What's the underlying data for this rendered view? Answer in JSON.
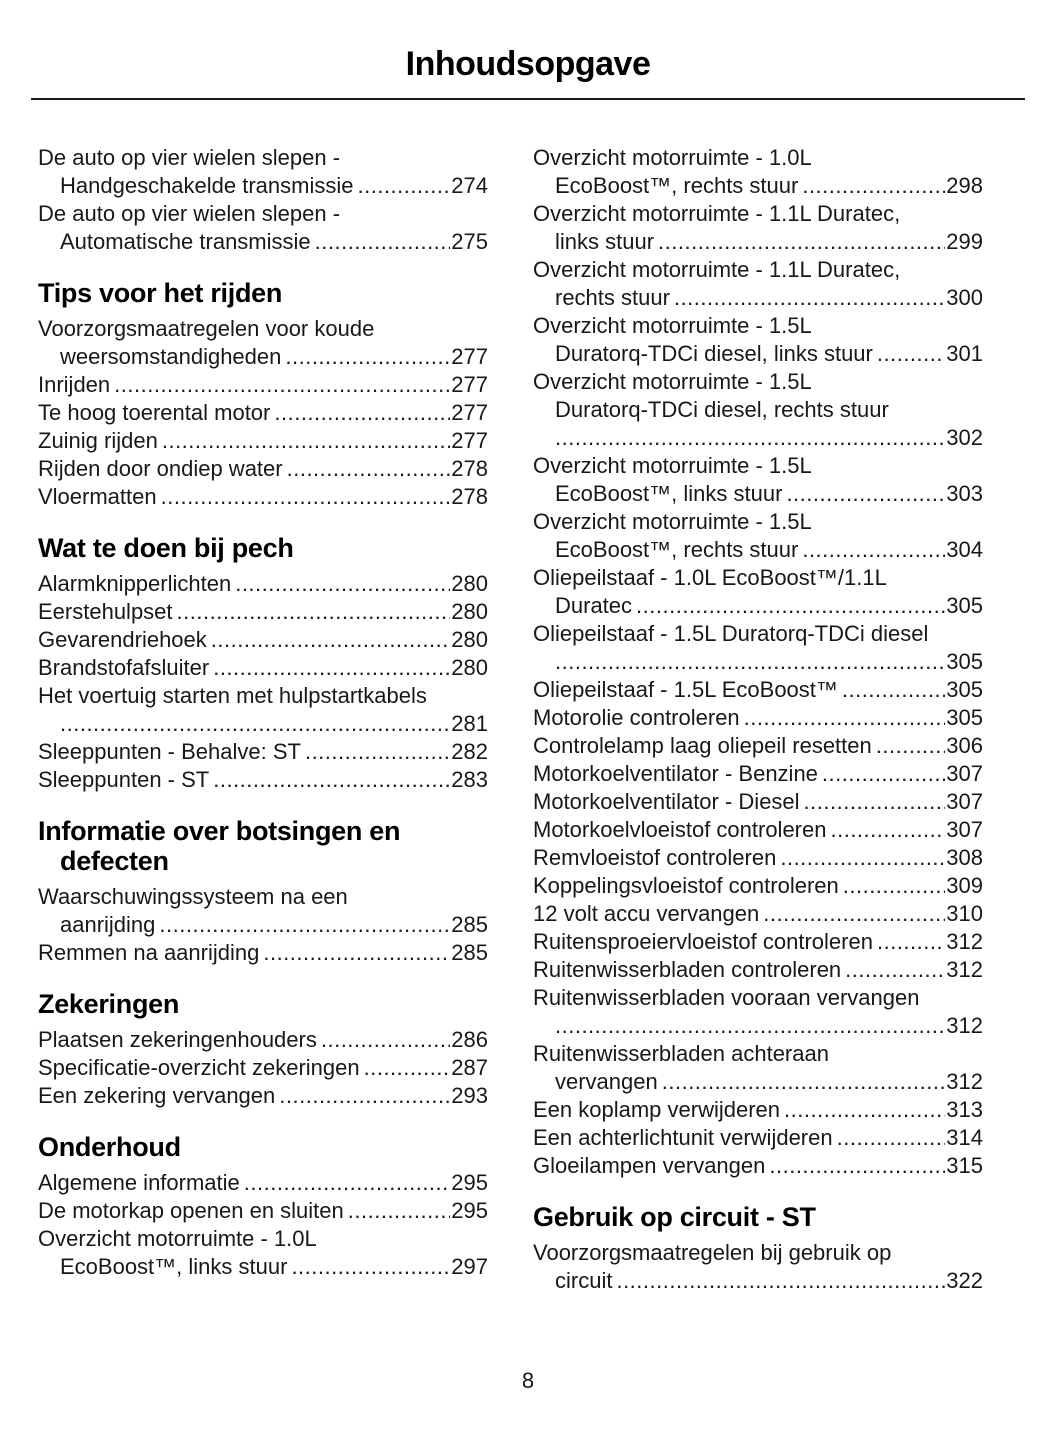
{
  "title": "Inhoudsopgave",
  "footer": {
    "page_number": "8"
  },
  "columns": {
    "left": [
      {
        "type": "entry",
        "pre": [
          "De auto op vier wielen slepen -"
        ],
        "last": "Handgeschakelde transmissie",
        "page": "274"
      },
      {
        "type": "entry",
        "pre": [
          "De auto op vier wielen slepen -"
        ],
        "last": "Automatische transmissie",
        "page": "275"
      },
      {
        "type": "heading",
        "lines": [
          "Tips voor het rijden"
        ]
      },
      {
        "type": "entry",
        "pre": [
          "Voorzorgsmaatregelen voor koude"
        ],
        "last": "weersomstandigheden",
        "page": "277"
      },
      {
        "type": "entry",
        "pre": [],
        "last": "Inrijden",
        "page": "277"
      },
      {
        "type": "entry",
        "pre": [],
        "last": "Te hoog toerental motor",
        "page": "277"
      },
      {
        "type": "entry",
        "pre": [],
        "last": "Zuinig rijden",
        "page": "277"
      },
      {
        "type": "entry",
        "pre": [],
        "last": "Rijden door ondiep water",
        "page": "278"
      },
      {
        "type": "entry",
        "pre": [],
        "last": "Vloermatten",
        "page": "278"
      },
      {
        "type": "heading",
        "lines": [
          "Wat te doen bij pech"
        ]
      },
      {
        "type": "entry",
        "pre": [],
        "last": "Alarmknipperlichten",
        "page": "280"
      },
      {
        "type": "entry",
        "pre": [],
        "last": "Eerstehulpset",
        "page": "280"
      },
      {
        "type": "entry",
        "pre": [],
        "last": "Gevarendriehoek",
        "page": "280"
      },
      {
        "type": "entry",
        "pre": [],
        "last": "Brandstofafsluiter",
        "page": "280"
      },
      {
        "type": "entry",
        "pre": [
          "Het voertuig starten met hulpstartkabels"
        ],
        "last": "",
        "page": "281"
      },
      {
        "type": "entry",
        "pre": [],
        "last": "Sleeppunten - Behalve: ST",
        "page": "282"
      },
      {
        "type": "entry",
        "pre": [],
        "last": "Sleeppunten - ST",
        "page": "283"
      },
      {
        "type": "heading",
        "lines": [
          "Informatie over botsingen en",
          "defecten"
        ]
      },
      {
        "type": "entry",
        "pre": [
          "Waarschuwingssysteem na een"
        ],
        "last": "aanrijding",
        "page": "285"
      },
      {
        "type": "entry",
        "pre": [],
        "last": "Remmen na aanrijding",
        "page": "285"
      },
      {
        "type": "heading",
        "lines": [
          "Zekeringen"
        ]
      },
      {
        "type": "entry",
        "pre": [],
        "last": "Plaatsen zekeringenhouders",
        "page": "286"
      },
      {
        "type": "entry",
        "pre": [],
        "last": "Specificatie-overzicht zekeringen",
        "page": "287"
      },
      {
        "type": "entry",
        "pre": [],
        "last": "Een zekering vervangen",
        "page": "293"
      },
      {
        "type": "heading",
        "lines": [
          "Onderhoud"
        ]
      },
      {
        "type": "entry",
        "pre": [],
        "last": "Algemene informatie",
        "page": "295"
      },
      {
        "type": "entry",
        "pre": [],
        "last": "De motorkap openen en sluiten",
        "page": "295"
      },
      {
        "type": "entry",
        "pre": [
          "Overzicht motorruimte - 1.0L"
        ],
        "last": "EcoBoost™, links stuur",
        "page": "297"
      }
    ],
    "right": [
      {
        "type": "entry",
        "pre": [
          "Overzicht motorruimte - 1.0L"
        ],
        "last": "EcoBoost™, rechts stuur",
        "page": "298"
      },
      {
        "type": "entry",
        "pre": [
          "Overzicht motorruimte - 1.1L Duratec,"
        ],
        "last": "links stuur",
        "page": "299"
      },
      {
        "type": "entry",
        "pre": [
          "Overzicht motorruimte - 1.1L Duratec,"
        ],
        "last": "rechts stuur",
        "page": "300"
      },
      {
        "type": "entry",
        "pre": [
          "Overzicht motorruimte - 1.5L"
        ],
        "last": "Duratorq-TDCi diesel, links stuur",
        "page": "301"
      },
      {
        "type": "entry",
        "pre": [
          "Overzicht motorruimte - 1.5L",
          "Duratorq-TDCi diesel, rechts stuur"
        ],
        "last": "",
        "page": "302"
      },
      {
        "type": "entry",
        "pre": [
          "Overzicht motorruimte - 1.5L"
        ],
        "last": "EcoBoost™, links stuur",
        "page": "303"
      },
      {
        "type": "entry",
        "pre": [
          "Overzicht motorruimte - 1.5L"
        ],
        "last": "EcoBoost™, rechts stuur",
        "page": "304"
      },
      {
        "type": "entry",
        "pre": [
          "Oliepeilstaaf - 1.0L EcoBoost™/1.1L"
        ],
        "last": "Duratec",
        "page": "305"
      },
      {
        "type": "entry",
        "pre": [
          "Oliepeilstaaf - 1.5L Duratorq-TDCi diesel"
        ],
        "last": "",
        "page": "305"
      },
      {
        "type": "entry",
        "pre": [],
        "last": "Oliepeilstaaf - 1.5L EcoBoost™",
        "page": "305"
      },
      {
        "type": "entry",
        "pre": [],
        "last": "Motorolie controleren",
        "page": "305"
      },
      {
        "type": "entry",
        "pre": [],
        "last": "Controlelamp laag oliepeil resetten",
        "page": "306"
      },
      {
        "type": "entry",
        "pre": [],
        "last": "Motorkoelventilator - Benzine",
        "page": "307"
      },
      {
        "type": "entry",
        "pre": [],
        "last": "Motorkoelventilator - Diesel",
        "page": "307"
      },
      {
        "type": "entry",
        "pre": [],
        "last": "Motorkoelvloeistof controleren",
        "page": "307"
      },
      {
        "type": "entry",
        "pre": [],
        "last": "Remvloeistof controleren",
        "page": "308"
      },
      {
        "type": "entry",
        "pre": [],
        "last": "Koppelingsvloeistof controleren",
        "page": "309"
      },
      {
        "type": "entry",
        "pre": [],
        "last": "12 volt accu vervangen",
        "page": "310"
      },
      {
        "type": "entry",
        "pre": [],
        "last": "Ruitensproeiervloeistof controleren",
        "page": "312"
      },
      {
        "type": "entry",
        "pre": [],
        "last": "Ruitenwisserbladen controleren",
        "page": "312"
      },
      {
        "type": "entry",
        "pre": [
          "Ruitenwisserbladen vooraan vervangen"
        ],
        "last": "",
        "page": "312"
      },
      {
        "type": "entry",
        "pre": [
          "Ruitenwisserbladen achteraan"
        ],
        "last": "vervangen",
        "page": "312"
      },
      {
        "type": "entry",
        "pre": [],
        "last": "Een koplamp verwijderen",
        "page": "313"
      },
      {
        "type": "entry",
        "pre": [],
        "last": "Een achterlichtunit verwijderen",
        "page": "314"
      },
      {
        "type": "entry",
        "pre": [],
        "last": "Gloeilampen vervangen",
        "page": "315"
      },
      {
        "type": "heading",
        "lines": [
          "Gebruik op circuit - ST"
        ]
      },
      {
        "type": "entry",
        "pre": [
          "Voorzorgsmaatregelen bij gebruik op"
        ],
        "last": "circuit",
        "page": "322"
      }
    ]
  }
}
